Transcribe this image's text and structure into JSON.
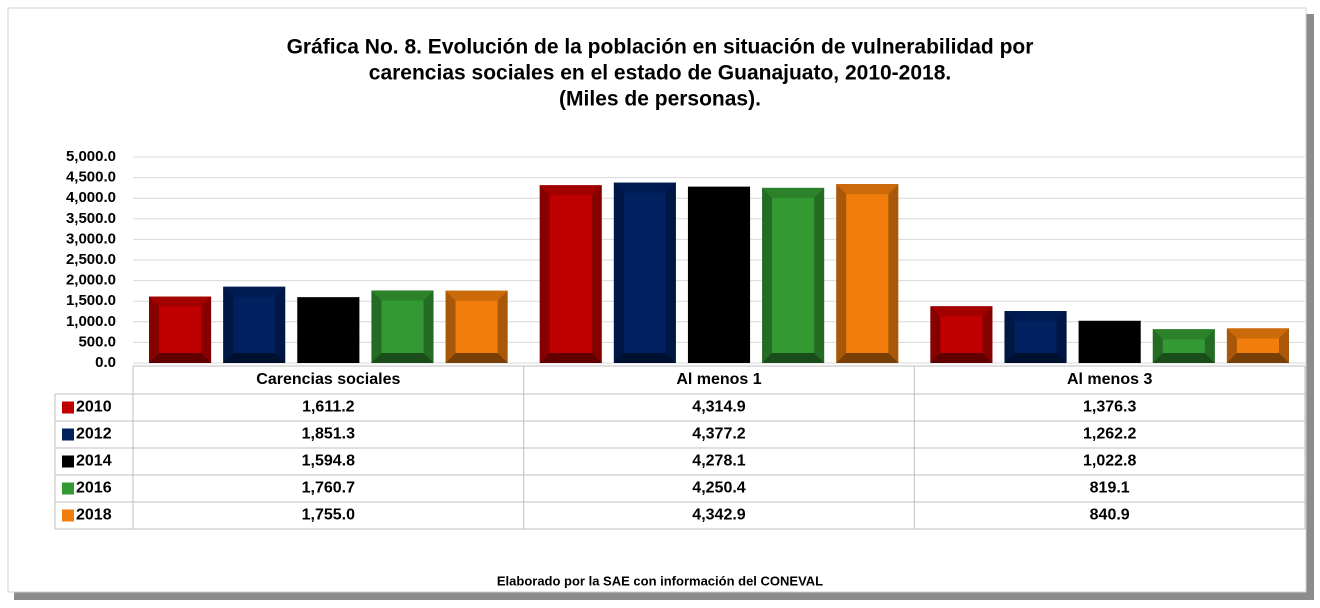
{
  "chart_data": {
    "type": "bar",
    "title": [
      "Gráfica No. 8. Evolución de la población en situación de vulnerabilidad por",
      "carencias sociales en el estado de Guanajuato, 2010-2018.",
      "(Miles de personas)."
    ],
    "categories": [
      "Carencias sociales",
      "Al menos 1",
      "Al menos 3"
    ],
    "series": [
      {
        "name": "2010",
        "color": "#c00000",
        "values": [
          1611.2,
          4314.9,
          1376.3
        ],
        "value_labels": [
          "1,611.2",
          "4,314.9",
          "1,376.3"
        ]
      },
      {
        "name": "2012",
        "color": "#002060",
        "values": [
          1851.3,
          4377.2,
          1262.2
        ],
        "value_labels": [
          "1,851.3",
          "4,377.2",
          "1,262.2"
        ]
      },
      {
        "name": "2014",
        "color": "#000000",
        "values": [
          1594.8,
          4278.1,
          1022.8
        ],
        "value_labels": [
          "1,594.8",
          "4,278.1",
          "1,022.8"
        ]
      },
      {
        "name": "2016",
        "color": "#339933",
        "values": [
          1760.7,
          4250.4,
          819.1
        ],
        "value_labels": [
          "1,760.7",
          "4,250.4",
          "819.1"
        ]
      },
      {
        "name": "2018",
        "color": "#f07d0c",
        "values": [
          1755.0,
          4342.9,
          840.9
        ],
        "value_labels": [
          "1,755.0",
          "4,342.9",
          "840.9"
        ]
      }
    ],
    "ylim": [
      0,
      5000
    ],
    "yticks": [
      {
        "value": 0,
        "label": "0.0"
      },
      {
        "value": 500,
        "label": "500.0"
      },
      {
        "value": 1000,
        "label": "1,000.0"
      },
      {
        "value": 1500,
        "label": "1,500.0"
      },
      {
        "value": 2000,
        "label": "2,000.0"
      },
      {
        "value": 2500,
        "label": "2,500.0"
      },
      {
        "value": 3000,
        "label": "3,000.0"
      },
      {
        "value": 3500,
        "label": "3,500.0"
      },
      {
        "value": 4000,
        "label": "4,000.0"
      },
      {
        "value": 4500,
        "label": "4,500.0"
      },
      {
        "value": 5000,
        "label": "5,000.0"
      }
    ],
    "grid": true,
    "source": "Elaborado por la SAE con información del CONEVAL"
  }
}
